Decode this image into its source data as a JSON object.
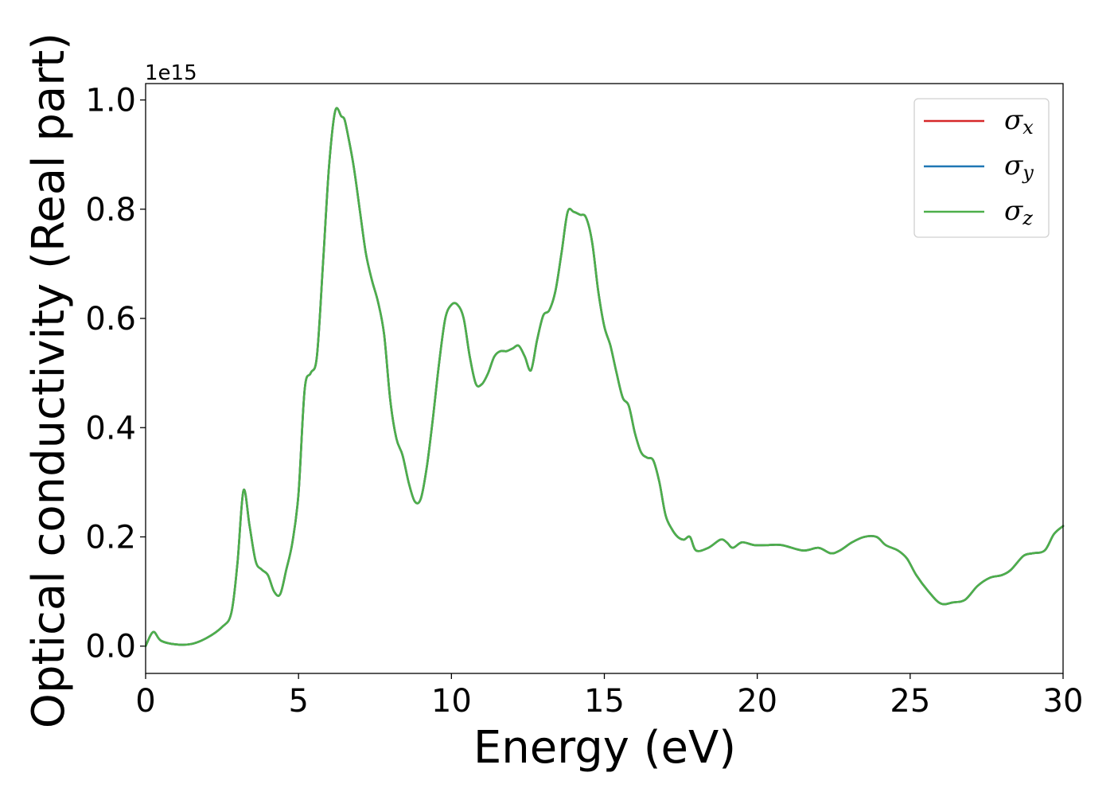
{
  "chart_data": {
    "type": "line",
    "title": "",
    "xlabel": "Energy (eV)",
    "ylabel": "Optical conductivity (Real part)",
    "y_offset_label": "1e15",
    "xlim": [
      0,
      30
    ],
    "ylim": [
      -0.05,
      1.03
    ],
    "xticks": [
      0,
      5,
      10,
      15,
      20,
      25,
      30
    ],
    "xtick_labels": [
      "0",
      "5",
      "10",
      "15",
      "20",
      "25",
      "30"
    ],
    "yticks": [
      0.0,
      0.2,
      0.4,
      0.6,
      0.8,
      1.0
    ],
    "ytick_labels": [
      "0.0",
      "0.2",
      "0.4",
      "0.6",
      "0.8",
      "1.0"
    ],
    "grid": false,
    "legend_position": "top-right",
    "x": [
      0.0,
      0.25,
      0.5,
      1.0,
      1.5,
      2.0,
      2.5,
      2.8,
      3.0,
      3.2,
      3.4,
      3.6,
      3.8,
      4.0,
      4.2,
      4.4,
      4.6,
      4.8,
      5.0,
      5.2,
      5.4,
      5.6,
      5.8,
      6.0,
      6.2,
      6.4,
      6.5,
      6.6,
      6.8,
      7.0,
      7.2,
      7.4,
      7.6,
      7.8,
      8.0,
      8.2,
      8.4,
      8.6,
      8.8,
      9.0,
      9.2,
      9.4,
      9.6,
      9.8,
      10.0,
      10.2,
      10.4,
      10.6,
      10.8,
      11.0,
      11.2,
      11.4,
      11.6,
      11.8,
      12.0,
      12.2,
      12.4,
      12.6,
      12.8,
      13.0,
      13.2,
      13.4,
      13.6,
      13.8,
      14.0,
      14.2,
      14.4,
      14.6,
      14.8,
      15.0,
      15.2,
      15.4,
      15.6,
      15.8,
      16.0,
      16.2,
      16.4,
      16.6,
      16.8,
      17.0,
      17.2,
      17.4,
      17.6,
      17.8,
      18.0,
      18.4,
      18.8,
      19.0,
      19.2,
      19.5,
      19.9,
      20.3,
      20.8,
      21.5,
      22.0,
      22.4,
      22.7,
      23.1,
      23.5,
      23.9,
      24.2,
      24.6,
      24.9,
      25.2,
      25.6,
      26.0,
      26.4,
      26.8,
      27.2,
      27.6,
      28.0,
      28.3,
      28.7,
      29.0,
      29.4,
      29.7,
      30.0
    ],
    "series": [
      {
        "name": "σx",
        "color": "#d62728"
      },
      {
        "name": "σy",
        "color": "#1f77b4"
      },
      {
        "name": "σz",
        "color": "#4daf4a"
      }
    ],
    "values": [
      0.0,
      0.026,
      0.01,
      0.003,
      0.004,
      0.015,
      0.035,
      0.06,
      0.15,
      0.285,
      0.22,
      0.155,
      0.14,
      0.13,
      0.1,
      0.095,
      0.14,
      0.19,
      0.28,
      0.47,
      0.5,
      0.53,
      0.7,
      0.88,
      0.98,
      0.97,
      0.965,
      0.94,
      0.88,
      0.8,
      0.72,
      0.67,
      0.63,
      0.57,
      0.45,
      0.38,
      0.35,
      0.3,
      0.265,
      0.27,
      0.33,
      0.42,
      0.52,
      0.6,
      0.625,
      0.625,
      0.6,
      0.53,
      0.48,
      0.48,
      0.5,
      0.53,
      0.54,
      0.54,
      0.545,
      0.55,
      0.53,
      0.505,
      0.56,
      0.605,
      0.615,
      0.65,
      0.72,
      0.795,
      0.795,
      0.79,
      0.785,
      0.74,
      0.65,
      0.585,
      0.55,
      0.5,
      0.455,
      0.44,
      0.39,
      0.355,
      0.345,
      0.34,
      0.3,
      0.24,
      0.215,
      0.2,
      0.195,
      0.2,
      0.175,
      0.18,
      0.195,
      0.19,
      0.18,
      0.19,
      0.185,
      0.185,
      0.185,
      0.175,
      0.18,
      0.17,
      0.175,
      0.19,
      0.2,
      0.2,
      0.185,
      0.175,
      0.16,
      0.13,
      0.1,
      0.078,
      0.08,
      0.085,
      0.11,
      0.125,
      0.13,
      0.14,
      0.165,
      0.17,
      0.175,
      0.205,
      0.22
    ]
  }
}
